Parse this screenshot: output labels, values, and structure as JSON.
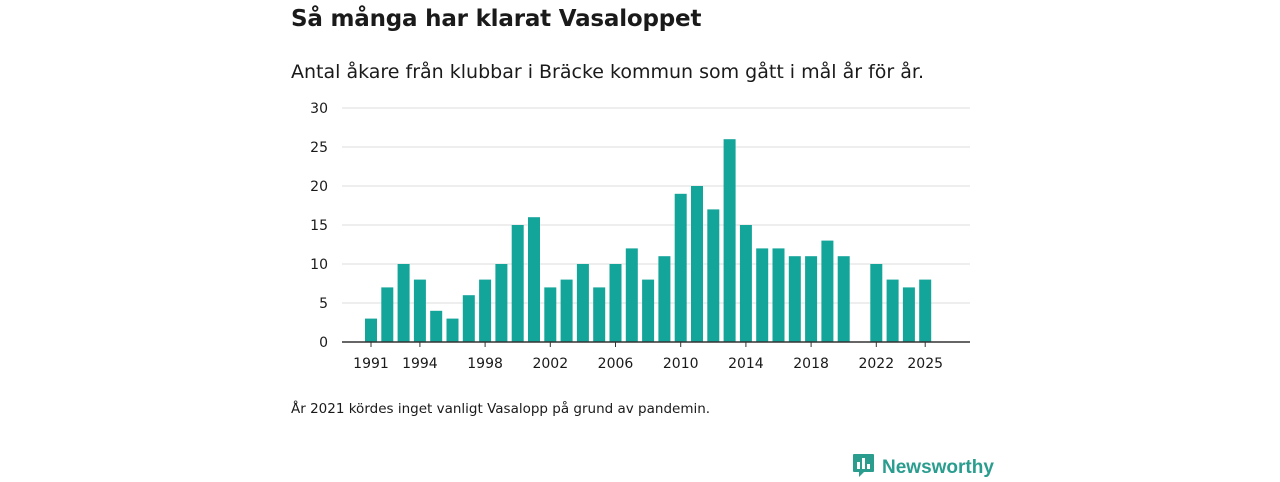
{
  "title": "Så många har klarat Vasaloppet",
  "subtitle": "Antal åkare från klubbar i Bräcke kommun som gått i mål år för år.",
  "note": "År 2021 kördes inget vanligt Vasalopp på grund av pandemin.",
  "brand": {
    "name": "Newsworthy",
    "icon": "newsworthy-logo-icon",
    "color": "#2a9d8f"
  },
  "colors": {
    "bar": "#13a59a",
    "grid": "#dcdcdc",
    "axis": "#333333"
  },
  "chart_data": {
    "type": "bar",
    "title": "Så många har klarat Vasaloppet",
    "xlabel": "",
    "ylabel": "",
    "ylim": [
      0,
      30
    ],
    "yticks": [
      0,
      5,
      10,
      15,
      20,
      25,
      30
    ],
    "xticks": [
      1991,
      1994,
      1998,
      2002,
      2006,
      2010,
      2014,
      2018,
      2022,
      2025
    ],
    "grid": true,
    "categories": [
      1991,
      1992,
      1993,
      1994,
      1995,
      1996,
      1997,
      1998,
      1999,
      2000,
      2001,
      2002,
      2003,
      2004,
      2005,
      2006,
      2007,
      2008,
      2009,
      2010,
      2011,
      2012,
      2013,
      2014,
      2015,
      2016,
      2017,
      2018,
      2019,
      2020,
      2021,
      2022,
      2023,
      2024,
      2025
    ],
    "values": [
      3,
      7,
      10,
      8,
      4,
      3,
      6,
      8,
      10,
      15,
      16,
      7,
      8,
      10,
      7,
      10,
      12,
      8,
      11,
      19,
      20,
      17,
      26,
      15,
      12,
      12,
      11,
      11,
      13,
      11,
      null,
      10,
      8,
      7,
      8
    ]
  }
}
